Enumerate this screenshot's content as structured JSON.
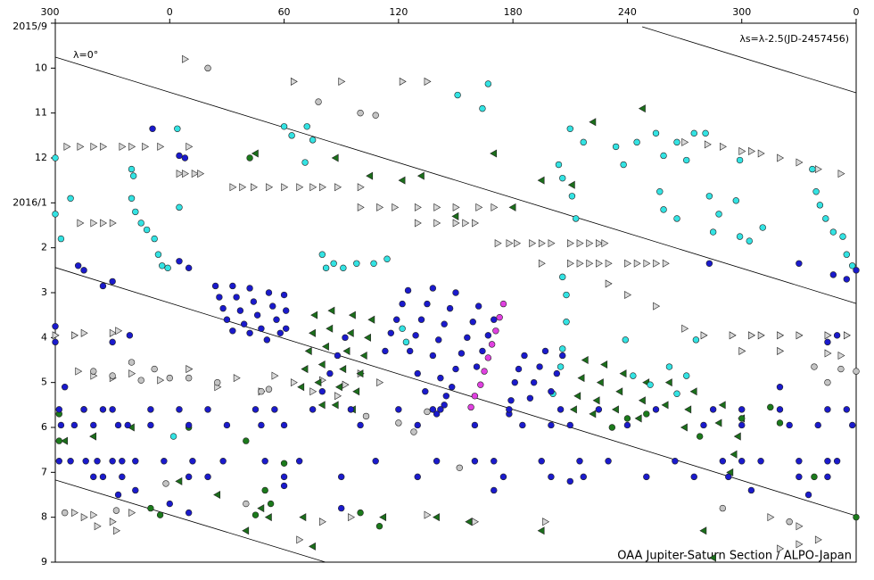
{
  "chart_data": {
    "type": "scatter",
    "annotations": {
      "zero": "λ=0°",
      "formula": "λs=λ-2.5(JD-2457456)",
      "credit": "OAA Jupiter-Saturn Section / ALPO-Japan"
    },
    "xlim": [
      -60,
      360
    ],
    "xticks": [
      {
        "value": -60,
        "label": "300"
      },
      0,
      60,
      120,
      180,
      240,
      300,
      {
        "value": 360,
        "label": "0"
      }
    ],
    "ylim": [
      0,
      12
    ],
    "y_inverted": true,
    "yticks": [
      {
        "value": 0,
        "label": "2015/9"
      },
      {
        "value": 1,
        "label": "10"
      },
      {
        "value": 2,
        "label": "11"
      },
      {
        "value": 3,
        "label": "12"
      },
      {
        "value": 4,
        "label": "2016/1"
      },
      {
        "value": 5,
        "label": "2"
      },
      {
        "value": 6,
        "label": "3"
      },
      {
        "value": 7,
        "label": "4"
      },
      {
        "value": 8,
        "label": "5"
      },
      {
        "value": 9,
        "label": "6"
      },
      {
        "value": 10,
        "label": "7"
      },
      {
        "value": 11,
        "label": "8"
      },
      {
        "value": 12,
        "label": "9"
      }
    ],
    "reference_lines": [
      {
        "x": [
          -60,
          360
        ],
        "values": [
          0.755,
          6.24
        ]
      },
      {
        "x": [
          -60,
          360
        ],
        "values": [
          5.44,
          10.97
        ]
      },
      {
        "x": [
          247.8,
          360
        ],
        "values": [
          0.08,
          1.55
        ]
      },
      {
        "x": [
          -60,
          81.7
        ],
        "values": [
          10.17,
          12
        ]
      }
    ],
    "series": [
      {
        "marker": "triangle-right",
        "color": "#d8d8d8",
        "x": [
          65,
          90,
          122,
          135,
          8,
          -54,
          -47,
          -40,
          -35,
          -25,
          -20,
          -13,
          -5,
          10,
          5,
          8,
          13,
          16,
          33,
          38,
          44,
          52,
          60,
          68,
          75,
          80,
          88,
          100,
          100,
          110,
          118,
          130,
          140,
          150,
          162,
          170,
          -47,
          -40,
          -35,
          -30,
          130,
          140,
          150,
          155,
          160,
          172,
          178,
          182,
          190,
          195,
          200,
          210,
          215,
          220,
          225,
          228,
          195,
          210,
          215,
          220,
          225,
          230,
          240,
          245,
          250,
          255,
          260,
          270,
          282,
          290,
          300,
          305,
          310,
          320,
          330,
          340,
          352,
          280,
          295,
          305,
          310,
          320,
          330,
          345,
          355,
          -60,
          -50,
          -45,
          -30,
          -27,
          230,
          240,
          255,
          270,
          300,
          320,
          345,
          352,
          -48,
          -40,
          -30,
          -20,
          -5,
          10,
          25,
          35,
          48,
          55,
          65,
          75,
          80,
          88,
          92,
          100,
          110,
          -50,
          -45,
          -40,
          -30,
          -20,
          -38,
          -28,
          68,
          80,
          95,
          135,
          160,
          197,
          315,
          320,
          330,
          340,
          330
        ],
        "values": [
          1.3,
          1.3,
          1.3,
          1.3,
          0.8,
          2.75,
          2.75,
          2.75,
          2.75,
          2.75,
          2.75,
          2.75,
          2.75,
          2.75,
          3.35,
          3.35,
          3.35,
          3.35,
          3.65,
          3.65,
          3.65,
          3.65,
          3.65,
          3.65,
          3.65,
          3.65,
          3.65,
          3.65,
          4.1,
          4.1,
          4.1,
          4.1,
          4.1,
          4.1,
          4.1,
          4.1,
          4.45,
          4.45,
          4.45,
          4.45,
          4.45,
          4.45,
          4.45,
          4.45,
          4.45,
          4.9,
          4.9,
          4.9,
          4.9,
          4.9,
          4.9,
          4.9,
          4.9,
          4.9,
          4.9,
          4.9,
          5.35,
          5.35,
          5.35,
          5.35,
          5.35,
          5.35,
          5.35,
          5.35,
          5.35,
          5.35,
          5.35,
          2.65,
          2.7,
          2.75,
          2.85,
          2.85,
          2.9,
          3.0,
          3.1,
          3.25,
          3.35,
          6.95,
          6.95,
          6.95,
          6.95,
          6.95,
          6.95,
          6.95,
          6.95,
          6.95,
          6.95,
          6.9,
          6.9,
          6.85,
          5.8,
          6.05,
          6.3,
          6.8,
          7.3,
          7.3,
          7.35,
          7.4,
          7.75,
          7.85,
          7.9,
          7.8,
          7.95,
          7.7,
          8.1,
          7.9,
          8.2,
          7.85,
          8.0,
          8.2,
          7.95,
          8.3,
          8.05,
          7.8,
          8.0,
          10.9,
          11.0,
          10.95,
          11.1,
          10.9,
          11.2,
          11.3,
          11.5,
          11.1,
          11.0,
          10.95,
          11.1,
          11.1,
          11.0,
          11.7,
          11.2,
          11.5,
          11.6
        ]
      },
      {
        "marker": "circle",
        "color": "#c4c4c4",
        "x": [
          20,
          78,
          100,
          108,
          -20,
          -40,
          -30,
          0,
          -8,
          -15,
          10,
          25,
          48,
          52,
          103,
          120,
          128,
          135,
          152,
          -2,
          -55,
          -28,
          338,
          345,
          352,
          360,
          290,
          325,
          40
        ],
        "values": [
          1.0,
          1.75,
          2.0,
          2.05,
          7.55,
          7.75,
          7.85,
          7.9,
          7.7,
          7.95,
          7.9,
          8.0,
          8.2,
          8.15,
          8.75,
          8.9,
          9.1,
          8.65,
          9.9,
          10.25,
          10.9,
          10.85,
          7.65,
          8.0,
          7.7,
          7.75,
          10.8,
          11.1,
          10.7
        ]
      },
      {
        "marker": "triangle-left",
        "color": "#1b6e1b",
        "x": [
          45,
          87,
          105,
          122,
          132,
          150,
          170,
          180,
          195,
          211,
          222,
          248,
          76,
          75,
          73,
          71,
          69,
          80,
          85,
          84,
          82,
          80,
          78,
          96,
          95,
          93,
          91,
          89,
          87,
          106,
          104,
          102,
          100,
          98,
          96,
          218,
          216,
          214,
          212,
          228,
          226,
          224,
          222,
          238,
          236,
          234,
          250,
          248,
          246,
          262,
          260,
          275,
          272,
          270,
          290,
          288,
          300,
          298,
          296,
          294,
          -55,
          -40,
          -20,
          5,
          25,
          48,
          52,
          40,
          70,
          112,
          140,
          157,
          195,
          280,
          285,
          75
        ],
        "values": [
          2.9,
          3.0,
          3.4,
          3.5,
          3.4,
          4.3,
          2.9,
          4.1,
          3.5,
          3.6,
          2.2,
          1.9,
          6.5,
          6.9,
          7.3,
          7.7,
          8.1,
          8.5,
          6.4,
          6.8,
          7.2,
          7.6,
          8.0,
          6.5,
          6.9,
          7.3,
          7.7,
          8.1,
          8.5,
          6.6,
          7.0,
          7.4,
          7.8,
          8.2,
          8.6,
          7.5,
          7.9,
          8.3,
          8.6,
          7.6,
          8.0,
          8.4,
          8.7,
          7.8,
          8.2,
          8.6,
          8.0,
          8.4,
          8.8,
          8.0,
          8.5,
          8.2,
          8.6,
          9.0,
          8.5,
          8.9,
          8.8,
          9.2,
          9.6,
          10.0,
          9.3,
          9.2,
          9.0,
          10.2,
          10.5,
          10.8,
          11.0,
          11.3,
          11.0,
          11.0,
          11.0,
          11.1,
          11.3,
          11.3,
          11.9,
          11.65
        ]
      },
      {
        "marker": "circle",
        "color": "#1b7a1b",
        "x": [
          42,
          -58,
          -45,
          10,
          40,
          50,
          53,
          60,
          45,
          -5,
          -10,
          100,
          110,
          278,
          300,
          315,
          320,
          338,
          360,
          -58,
          232,
          240,
          250
        ],
        "values": [
          3.0,
          8.7,
          8.6,
          9.0,
          9.3,
          10.4,
          10.7,
          9.8,
          10.95,
          10.95,
          10.8,
          10.9,
          11.2,
          9.2,
          8.8,
          8.55,
          8.9,
          10.1,
          11.0,
          9.3,
          9.0,
          8.8,
          8.7
        ]
      },
      {
        "marker": "circle",
        "color": "#33e3e3",
        "x": [
          -60,
          -60,
          -57,
          -52,
          -20,
          -19,
          -20,
          -18,
          -15,
          -12,
          -8,
          -6,
          -4,
          -1,
          5,
          4,
          60,
          64,
          72,
          75,
          71,
          80,
          82,
          86,
          91,
          98,
          107,
          114,
          151,
          167,
          164,
          204,
          206,
          211,
          213,
          206,
          208,
          208,
          206,
          205,
          201,
          210,
          217,
          234,
          238,
          245,
          255,
          259,
          257,
          259,
          266,
          266,
          271,
          275,
          281,
          283,
          285,
          288,
          297,
          299,
          304,
          311,
          299,
          337,
          339,
          341,
          344,
          348,
          353,
          355,
          358,
          239,
          243,
          252,
          262,
          266,
          271,
          276,
          122,
          124,
          2
        ],
        "values": [
          3.0,
          4.25,
          4.8,
          3.9,
          3.25,
          3.4,
          3.9,
          4.2,
          4.45,
          4.6,
          4.8,
          5.15,
          5.4,
          5.45,
          4.1,
          2.35,
          2.3,
          2.5,
          2.3,
          2.6,
          3.1,
          5.15,
          5.45,
          5.35,
          5.45,
          5.35,
          5.35,
          5.25,
          1.6,
          1.35,
          1.9,
          3.15,
          3.45,
          3.85,
          4.35,
          5.65,
          6.05,
          6.65,
          7.25,
          7.65,
          8.25,
          2.35,
          2.65,
          2.75,
          3.15,
          2.65,
          2.45,
          2.95,
          3.75,
          4.15,
          4.35,
          2.65,
          3.05,
          2.45,
          2.45,
          3.85,
          4.65,
          4.25,
          3.95,
          4.75,
          4.85,
          4.55,
          3.05,
          3.25,
          3.75,
          4.05,
          4.35,
          4.65,
          4.75,
          5.15,
          5.4,
          7.05,
          7.85,
          8.05,
          7.65,
          8.25,
          7.85,
          7.05,
          6.8,
          7.1,
          9.2
        ]
      },
      {
        "marker": "circle",
        "color": "#1a1acc",
        "x": [
          24,
          26,
          28,
          30,
          33,
          33,
          35,
          37,
          39,
          42,
          42,
          44,
          46,
          48,
          51,
          52,
          54,
          56,
          58,
          60,
          61,
          61,
          125,
          122,
          119,
          116,
          113,
          138,
          135,
          132,
          129,
          126,
          130,
          134,
          138,
          150,
          147,
          144,
          141,
          138,
          142,
          145,
          162,
          159,
          156,
          153,
          150,
          148,
          144,
          140,
          170,
          167,
          164,
          161,
          92,
          88,
          84,
          80,
          186,
          183,
          181,
          179,
          178,
          197,
          194,
          191,
          189,
          206,
          203,
          200,
          -58,
          -45,
          -35,
          -30,
          -10,
          5,
          20,
          45,
          55,
          75,
          95,
          120,
          142,
          178,
          205,
          225,
          255,
          285,
          300,
          320,
          345,
          355,
          -57,
          -50,
          -40,
          -27,
          -22,
          -10,
          10,
          30,
          48,
          60,
          100,
          130,
          160,
          185,
          200,
          210,
          240,
          280,
          300,
          325,
          340,
          358,
          -58,
          -52,
          -44,
          -38,
          -30,
          -25,
          -18,
          -3,
          12,
          28,
          50,
          68,
          108,
          140,
          160,
          170,
          195,
          215,
          230,
          265,
          290,
          300,
          310,
          330,
          345,
          350,
          -40,
          -35,
          -25,
          10,
          20,
          60,
          90,
          130,
          175,
          200,
          217,
          250,
          275,
          293,
          330,
          345,
          5,
          8,
          -9,
          -48,
          -45,
          -30,
          -35,
          5,
          10,
          -21,
          -60,
          -60,
          -55,
          -30,
          320,
          345,
          350,
          348,
          355,
          360,
          283,
          330,
          -27,
          -18,
          0,
          10,
          60,
          90,
          170,
          210,
          305,
          335
        ],
        "values": [
          5.85,
          6.1,
          6.35,
          6.6,
          6.85,
          5.85,
          6.1,
          6.4,
          6.7,
          6.9,
          5.9,
          6.2,
          6.5,
          6.8,
          7.05,
          6.0,
          6.3,
          6.6,
          6.9,
          6.05,
          6.4,
          6.8,
          5.95,
          6.25,
          6.6,
          6.9,
          7.3,
          5.9,
          6.25,
          6.6,
          6.95,
          7.3,
          7.8,
          8.2,
          8.6,
          6.0,
          6.35,
          6.7,
          7.05,
          7.4,
          7.9,
          8.3,
          6.3,
          6.65,
          7.0,
          7.35,
          7.7,
          8.1,
          8.5,
          8.7,
          6.6,
          6.95,
          7.3,
          7.65,
          7.0,
          7.4,
          7.8,
          8.2,
          7.4,
          7.7,
          8.0,
          8.4,
          8.7,
          7.3,
          7.65,
          8.0,
          8.35,
          7.4,
          7.8,
          8.2,
          8.6,
          8.6,
          8.6,
          8.6,
          8.6,
          8.6,
          8.6,
          8.6,
          8.6,
          8.6,
          8.6,
          8.6,
          8.6,
          8.6,
          8.6,
          8.6,
          8.6,
          8.6,
          8.6,
          8.6,
          8.6,
          8.6,
          8.95,
          8.95,
          8.95,
          8.95,
          8.95,
          8.95,
          8.95,
          8.95,
          8.95,
          8.95,
          8.95,
          8.95,
          8.95,
          8.95,
          8.95,
          8.95,
          8.95,
          8.95,
          8.95,
          8.95,
          8.95,
          8.95,
          9.75,
          9.75,
          9.75,
          9.75,
          9.75,
          9.75,
          9.75,
          9.75,
          9.75,
          9.75,
          9.75,
          9.75,
          9.75,
          9.75,
          9.75,
          9.75,
          9.75,
          9.75,
          9.75,
          9.75,
          9.75,
          9.75,
          9.75,
          9.75,
          9.75,
          9.75,
          10.1,
          10.1,
          10.1,
          10.1,
          10.1,
          10.1,
          10.1,
          10.1,
          10.1,
          10.1,
          10.1,
          10.1,
          10.1,
          10.1,
          10.1,
          10.1,
          2.95,
          3.0,
          2.35,
          5.4,
          5.5,
          5.75,
          5.85,
          5.3,
          5.45,
          6.95,
          6.75,
          7.1,
          8.1,
          7.1,
          8.1,
          7.1,
          6.95,
          5.6,
          5.7,
          5.5,
          5.35,
          5.35,
          10.5,
          10.4,
          10.7,
          10.9,
          10.3,
          10.8,
          10.4,
          10.2,
          10.4,
          10.5
        ]
      },
      {
        "marker": "circle",
        "color": "#e040e0",
        "x": [
          175,
          173,
          171,
          169,
          167,
          165,
          163,
          160,
          158
        ],
        "values": [
          6.25,
          6.55,
          6.85,
          7.15,
          7.45,
          7.75,
          8.05,
          8.3,
          8.55
        ]
      }
    ]
  }
}
